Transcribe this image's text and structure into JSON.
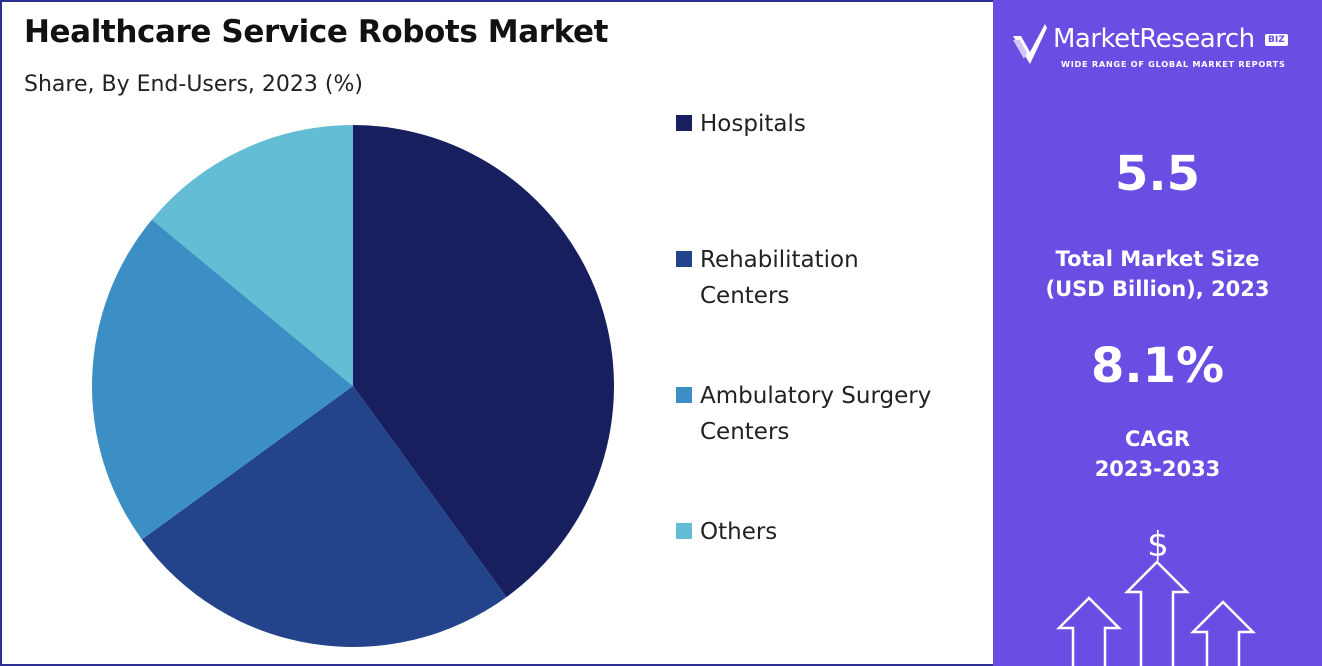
{
  "title": "Healthcare Service Robots Market",
  "subtitle": "Share, By End-Users, 2023 (%)",
  "chart_data": {
    "type": "pie",
    "title": "Healthcare Service Robots Market",
    "subtitle": "Share, By End-Users, 2023 (%)",
    "legend_position": "right",
    "categories": [
      "Hospitals",
      "Rehabilitation Centers",
      "Ambulatory Surgery Centers",
      "Others"
    ],
    "values": [
      40,
      25,
      21,
      14
    ],
    "colors": [
      "#171f5f",
      "#23448b",
      "#3b8fc4",
      "#63bdd4"
    ]
  },
  "legend": {
    "items": [
      {
        "lines": [
          "Hospitals"
        ],
        "color": "#171f5f"
      },
      {
        "lines": [
          "Rehabilitation",
          "Centers"
        ],
        "color": "#23448b"
      },
      {
        "lines": [
          "Ambulatory Surgery",
          "Centers"
        ],
        "color": "#3b8fc4"
      },
      {
        "lines": [
          "Others"
        ],
        "color": "#63bdd4"
      }
    ]
  },
  "sidebar": {
    "brand": "MarketResearch",
    "brand_badge": "BIZ",
    "tagline": "WIDE RANGE OF GLOBAL MARKET REPORTS",
    "market_size_value": "5.5",
    "market_size_label_1": "Total Market Size",
    "market_size_label_2": "(USD Billion), 2023",
    "cagr_value": "8.1%",
    "cagr_label_1": "CAGR",
    "cagr_label_2": "2023-2033",
    "currency_symbol": "$",
    "background": "#6a4de3"
  }
}
